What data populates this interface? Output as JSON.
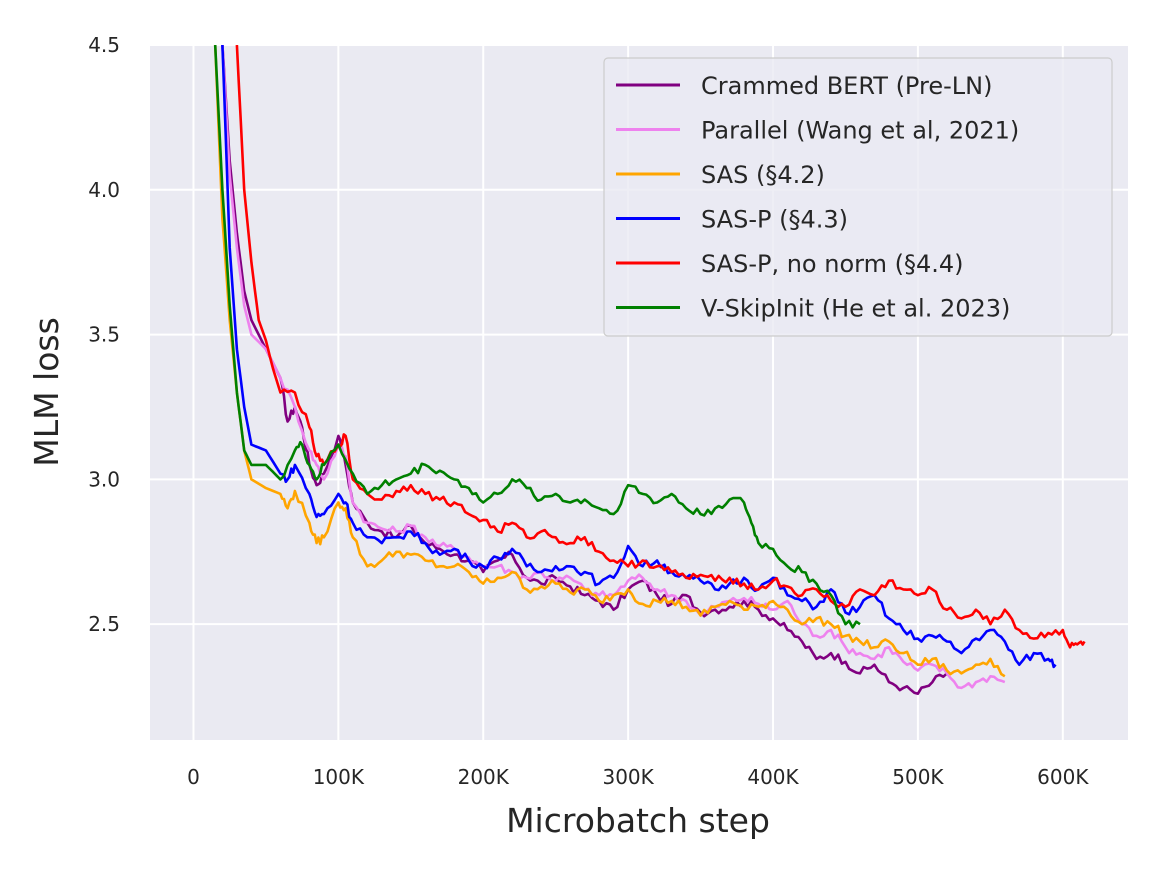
{
  "chart_data": {
    "type": "line",
    "title": "",
    "xlabel": "Microbatch step",
    "ylabel": "MLM loss",
    "xlim": [
      -30000,
      645000
    ],
    "ylim": [
      2.1,
      4.5
    ],
    "grid": true,
    "legend_position": "top-right",
    "xticks": [
      0,
      100000,
      200000,
      300000,
      400000,
      500000,
      600000
    ],
    "xtick_labels": [
      "0",
      "100K",
      "200K",
      "300K",
      "400K",
      "500K",
      "600K"
    ],
    "yticks": [
      2.5,
      3.0,
      3.5,
      4.0,
      4.5
    ],
    "ytick_labels": [
      "2.5",
      "3.0",
      "3.5",
      "4.0",
      "4.5"
    ],
    "series": [
      {
        "name": "Crammed BERT (Pre-LN)",
        "color": "#800080",
        "x": [
          20000,
          25000,
          30000,
          35000,
          40000,
          50000,
          60000,
          65000,
          70000,
          75000,
          80000,
          85000,
          90000,
          100000,
          105000,
          110000,
          120000,
          130000,
          140000,
          150000,
          160000,
          170000,
          180000,
          190000,
          200000,
          210000,
          220000,
          230000,
          240000,
          250000,
          260000,
          270000,
          280000,
          290000,
          300000,
          310000,
          320000,
          330000,
          340000,
          350000,
          360000,
          370000,
          380000,
          390000,
          400000,
          410000,
          420000,
          430000,
          440000,
          450000,
          460000,
          470000,
          480000,
          490000,
          500000,
          510000,
          520000
        ],
        "y": [
          4.5,
          4.1,
          3.85,
          3.65,
          3.55,
          3.45,
          3.35,
          3.2,
          3.25,
          3.18,
          3.05,
          2.98,
          3.02,
          3.15,
          3.05,
          2.92,
          2.85,
          2.82,
          2.8,
          2.84,
          2.78,
          2.76,
          2.74,
          2.72,
          2.68,
          2.72,
          2.74,
          2.66,
          2.64,
          2.66,
          2.63,
          2.6,
          2.58,
          2.55,
          2.62,
          2.65,
          2.6,
          2.57,
          2.6,
          2.54,
          2.55,
          2.56,
          2.58,
          2.55,
          2.52,
          2.48,
          2.44,
          2.38,
          2.4,
          2.37,
          2.33,
          2.36,
          2.3,
          2.28,
          2.26,
          2.3,
          2.33
        ]
      },
      {
        "name": "Parallel (Wang et al, 2021)",
        "color": "#ee82ee",
        "x": [
          20000,
          25000,
          30000,
          35000,
          40000,
          50000,
          60000,
          70000,
          80000,
          85000,
          90000,
          100000,
          105000,
          110000,
          120000,
          130000,
          140000,
          150000,
          160000,
          170000,
          180000,
          190000,
          200000,
          210000,
          220000,
          230000,
          240000,
          250000,
          260000,
          270000,
          280000,
          290000,
          300000,
          310000,
          320000,
          330000,
          340000,
          350000,
          360000,
          370000,
          380000,
          390000,
          400000,
          410000,
          420000,
          430000,
          440000,
          450000,
          460000,
          470000,
          480000,
          490000,
          500000,
          510000,
          520000,
          530000,
          540000,
          550000,
          560000
        ],
        "y": [
          4.5,
          4.05,
          3.8,
          3.6,
          3.5,
          3.45,
          3.35,
          3.25,
          3.1,
          3.05,
          3.0,
          3.12,
          3.08,
          2.92,
          2.85,
          2.83,
          2.82,
          2.84,
          2.8,
          2.77,
          2.76,
          2.73,
          2.7,
          2.7,
          2.68,
          2.66,
          2.68,
          2.65,
          2.66,
          2.62,
          2.6,
          2.6,
          2.65,
          2.66,
          2.62,
          2.6,
          2.58,
          2.53,
          2.56,
          2.58,
          2.59,
          2.57,
          2.55,
          2.58,
          2.5,
          2.46,
          2.48,
          2.42,
          2.4,
          2.38,
          2.42,
          2.37,
          2.34,
          2.36,
          2.33,
          2.28,
          2.3,
          2.32,
          2.3
        ]
      },
      {
        "name": "SAS (§4.2)",
        "color": "#ffa500",
        "x": [
          15000,
          20000,
          25000,
          30000,
          35000,
          40000,
          50000,
          60000,
          65000,
          70000,
          80000,
          85000,
          90000,
          100000,
          105000,
          110000,
          120000,
          130000,
          140000,
          150000,
          160000,
          170000,
          180000,
          190000,
          200000,
          210000,
          220000,
          230000,
          240000,
          250000,
          260000,
          270000,
          280000,
          290000,
          300000,
          310000,
          320000,
          330000,
          340000,
          350000,
          360000,
          370000,
          380000,
          390000,
          400000,
          410000,
          420000,
          430000,
          440000,
          450000,
          460000,
          470000,
          480000,
          490000,
          500000,
          510000,
          520000,
          530000,
          540000,
          550000,
          560000
        ],
        "y": [
          4.5,
          3.9,
          3.55,
          3.3,
          3.1,
          3.0,
          2.97,
          2.95,
          2.9,
          2.96,
          2.85,
          2.78,
          2.8,
          2.92,
          2.9,
          2.8,
          2.7,
          2.72,
          2.75,
          2.74,
          2.72,
          2.7,
          2.7,
          2.68,
          2.64,
          2.66,
          2.68,
          2.62,
          2.63,
          2.64,
          2.61,
          2.62,
          2.58,
          2.6,
          2.62,
          2.57,
          2.58,
          2.58,
          2.56,
          2.53,
          2.56,
          2.58,
          2.55,
          2.56,
          2.58,
          2.55,
          2.5,
          2.52,
          2.5,
          2.46,
          2.44,
          2.42,
          2.44,
          2.4,
          2.36,
          2.38,
          2.34,
          2.33,
          2.36,
          2.38,
          2.32
        ]
      },
      {
        "name": "SAS-P (§4.3)",
        "color": "#0000ff",
        "x": [
          20000,
          25000,
          30000,
          35000,
          40000,
          50000,
          60000,
          65000,
          70000,
          80000,
          85000,
          90000,
          100000,
          105000,
          110000,
          120000,
          130000,
          140000,
          150000,
          160000,
          170000,
          180000,
          190000,
          200000,
          210000,
          220000,
          230000,
          240000,
          250000,
          260000,
          270000,
          280000,
          290000,
          300000,
          310000,
          320000,
          330000,
          340000,
          350000,
          360000,
          370000,
          380000,
          390000,
          400000,
          410000,
          420000,
          430000,
          440000,
          450000,
          460000,
          470000,
          480000,
          490000,
          500000,
          510000,
          520000,
          530000,
          540000,
          550000,
          560000,
          570000,
          580000,
          590000,
          595000
        ],
        "y": [
          4.5,
          3.8,
          3.45,
          3.25,
          3.12,
          3.1,
          3.02,
          3.0,
          3.05,
          2.95,
          2.87,
          2.88,
          2.95,
          2.92,
          2.85,
          2.8,
          2.78,
          2.8,
          2.82,
          2.78,
          2.74,
          2.76,
          2.72,
          2.7,
          2.73,
          2.76,
          2.7,
          2.68,
          2.7,
          2.7,
          2.68,
          2.64,
          2.66,
          2.77,
          2.7,
          2.72,
          2.68,
          2.66,
          2.65,
          2.62,
          2.64,
          2.66,
          2.62,
          2.66,
          2.6,
          2.58,
          2.56,
          2.62,
          2.54,
          2.56,
          2.6,
          2.52,
          2.48,
          2.45,
          2.46,
          2.44,
          2.4,
          2.45,
          2.48,
          2.44,
          2.36,
          2.4,
          2.38,
          2.36
        ]
      },
      {
        "name": "SAS-P, no norm (§4.4)",
        "color": "#ff0000",
        "x": [
          30000,
          35000,
          40000,
          45000,
          50000,
          55000,
          60000,
          70000,
          80000,
          85000,
          90000,
          100000,
          105000,
          110000,
          120000,
          130000,
          140000,
          150000,
          160000,
          170000,
          180000,
          190000,
          200000,
          210000,
          220000,
          230000,
          240000,
          250000,
          260000,
          270000,
          280000,
          290000,
          300000,
          310000,
          320000,
          330000,
          340000,
          350000,
          360000,
          370000,
          380000,
          390000,
          400000,
          410000,
          420000,
          430000,
          440000,
          450000,
          460000,
          470000,
          480000,
          490000,
          500000,
          510000,
          520000,
          530000,
          540000,
          550000,
          560000,
          570000,
          580000,
          590000,
          600000,
          605000,
          610000,
          615000
        ],
        "y": [
          4.5,
          4.0,
          3.75,
          3.55,
          3.48,
          3.38,
          3.3,
          3.3,
          3.18,
          3.08,
          3.05,
          3.12,
          3.15,
          3.0,
          2.95,
          2.93,
          2.96,
          2.98,
          2.95,
          2.93,
          2.92,
          2.88,
          2.86,
          2.82,
          2.85,
          2.8,
          2.82,
          2.8,
          2.78,
          2.8,
          2.75,
          2.72,
          2.7,
          2.72,
          2.7,
          2.68,
          2.66,
          2.67,
          2.65,
          2.66,
          2.64,
          2.62,
          2.65,
          2.63,
          2.6,
          2.62,
          2.58,
          2.56,
          2.62,
          2.6,
          2.65,
          2.62,
          2.6,
          2.62,
          2.55,
          2.52,
          2.55,
          2.5,
          2.55,
          2.48,
          2.45,
          2.47,
          2.48,
          2.42,
          2.43,
          2.44
        ]
      },
      {
        "name": "V-SkipInit (He et al. 2023)",
        "color": "#008000",
        "x": [
          15000,
          20000,
          25000,
          30000,
          35000,
          40000,
          50000,
          60000,
          70000,
          75000,
          80000,
          85000,
          90000,
          100000,
          110000,
          120000,
          130000,
          140000,
          150000,
          160000,
          170000,
          180000,
          190000,
          200000,
          210000,
          220000,
          230000,
          240000,
          250000,
          260000,
          270000,
          280000,
          290000,
          300000,
          310000,
          320000,
          330000,
          340000,
          350000,
          360000,
          370000,
          380000,
          385000,
          390000,
          400000,
          410000,
          420000,
          430000,
          440000,
          450000,
          460000
        ],
        "y": [
          4.5,
          4.0,
          3.6,
          3.3,
          3.1,
          3.05,
          3.05,
          3.0,
          3.1,
          3.12,
          3.05,
          3.0,
          3.05,
          3.12,
          3.02,
          2.95,
          2.98,
          3.0,
          3.02,
          3.05,
          3.03,
          3.0,
          2.97,
          2.92,
          2.95,
          3.0,
          2.97,
          2.93,
          2.95,
          2.92,
          2.93,
          2.9,
          2.88,
          2.98,
          2.95,
          2.92,
          2.95,
          2.9,
          2.88,
          2.9,
          2.93,
          2.92,
          2.85,
          2.78,
          2.76,
          2.7,
          2.68,
          2.64,
          2.6,
          2.5,
          2.5
        ]
      }
    ]
  }
}
